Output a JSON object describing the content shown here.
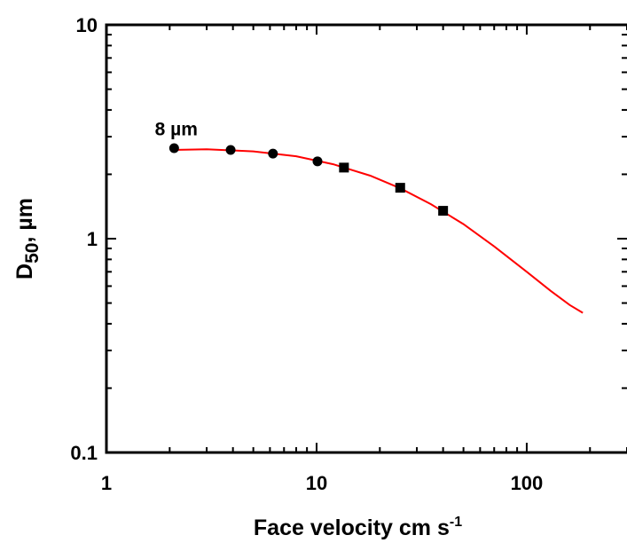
{
  "chart_data": {
    "type": "scatter",
    "x_scale": "log",
    "y_scale": "log",
    "xlim": [
      1,
      300
    ],
    "ylim": [
      0.1,
      10
    ],
    "grid": false,
    "xlabel": {
      "main": "Face velocity cm s",
      "sup": "-1"
    },
    "ylabel": {
      "main": "D",
      "sub": "50",
      "rest": ", µm"
    },
    "x_ticks": [
      {
        "value": 1,
        "label": "1"
      },
      {
        "value": 10,
        "label": "10"
      },
      {
        "value": 100,
        "label": "100"
      }
    ],
    "y_ticks": [
      {
        "value": 0.1,
        "label": "0.1"
      },
      {
        "value": 1,
        "label": "1"
      },
      {
        "value": 10,
        "label": "10"
      }
    ],
    "annotations": [
      {
        "text": "8 µm",
        "x": 1.7,
        "y": 3.05
      }
    ],
    "series": [
      {
        "marker": "circle",
        "color": "#000000",
        "points": [
          [
            2.1,
            2.65
          ],
          [
            3.9,
            2.6
          ],
          [
            6.2,
            2.5
          ],
          [
            10.1,
            2.3
          ]
        ]
      },
      {
        "marker": "square",
        "color": "#000000",
        "points": [
          [
            13.5,
            2.15
          ],
          [
            25,
            1.73
          ],
          [
            40,
            1.35
          ]
        ]
      },
      {
        "marker": "line",
        "color": "#ff0000",
        "points": [
          [
            2.05,
            2.6
          ],
          [
            3,
            2.62
          ],
          [
            5,
            2.56
          ],
          [
            8,
            2.43
          ],
          [
            12,
            2.23
          ],
          [
            18,
            1.97
          ],
          [
            25,
            1.72
          ],
          [
            35,
            1.45
          ],
          [
            50,
            1.17
          ],
          [
            70,
            0.92
          ],
          [
            100,
            0.7
          ],
          [
            130,
            0.57
          ],
          [
            160,
            0.49
          ],
          [
            185,
            0.45
          ]
        ]
      }
    ]
  }
}
